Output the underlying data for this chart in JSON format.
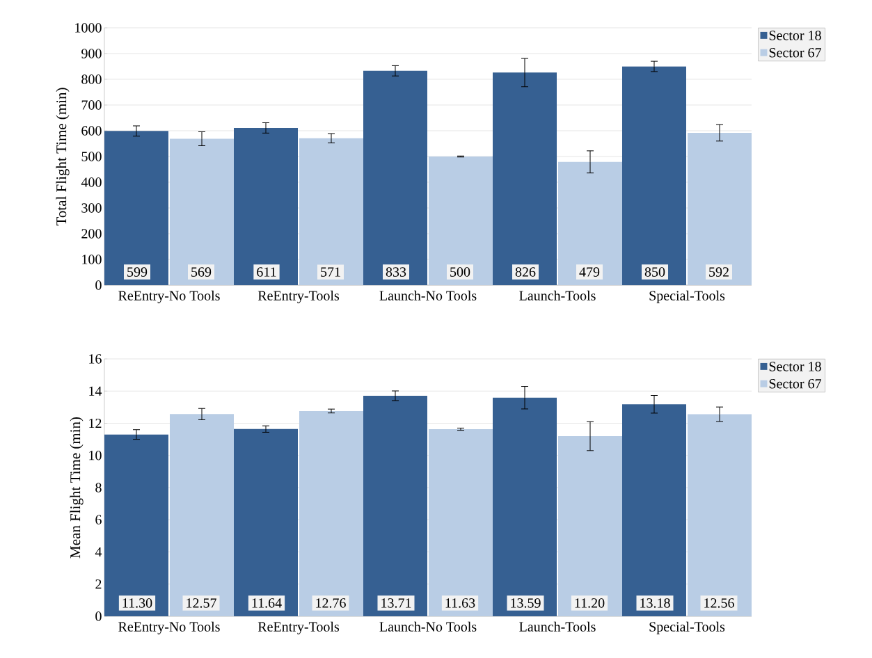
{
  "chart_data": [
    {
      "type": "bar",
      "ylabel": "Total Flight Time (min)",
      "categories": [
        "ReEntry-No Tools",
        "ReEntry-Tools",
        "Launch-No Tools",
        "Launch-Tools",
        "Special-Tools"
      ],
      "ylim": [
        0,
        1000
      ],
      "yticks": [
        0,
        100,
        200,
        300,
        400,
        500,
        600,
        700,
        800,
        900,
        1000
      ],
      "grid": "y",
      "legend": "top right",
      "series": [
        {
          "name": "Sector 18",
          "color": "#366092",
          "values": [
            599,
            611,
            833,
            826,
            850
          ],
          "errors": [
            20,
            20,
            20,
            55,
            20
          ],
          "value_labels": [
            "599",
            "611",
            "833",
            "826",
            "850"
          ]
        },
        {
          "name": "Sector 67",
          "color": "#b9cde5",
          "values": [
            569,
            571,
            500,
            479,
            592
          ],
          "errors": [
            27,
            18,
            2,
            43,
            32
          ],
          "value_labels": [
            "569",
            "571",
            "500",
            "479",
            "592"
          ]
        }
      ]
    },
    {
      "type": "bar",
      "ylabel": "Mean Flight Time (min)",
      "categories": [
        "ReEntry-No Tools",
        "ReEntry-Tools",
        "Launch-No Tools",
        "Launch-Tools",
        "Special-Tools"
      ],
      "ylim": [
        0,
        16
      ],
      "yticks": [
        0,
        2,
        4,
        6,
        8,
        10,
        12,
        14,
        16
      ],
      "grid": "y",
      "legend": "top right",
      "series": [
        {
          "name": "Sector 18",
          "color": "#366092",
          "values": [
            11.3,
            11.64,
            13.71,
            13.59,
            13.18
          ],
          "errors": [
            0.3,
            0.2,
            0.3,
            0.7,
            0.55
          ],
          "value_labels": [
            "11.30",
            "11.64",
            "13.71",
            "13.59",
            "13.18"
          ]
        },
        {
          "name": "Sector 67",
          "color": "#b9cde5",
          "values": [
            12.57,
            12.76,
            11.63,
            11.2,
            12.56
          ],
          "errors": [
            0.35,
            0.12,
            0.07,
            0.9,
            0.45
          ],
          "value_labels": [
            "12.57",
            "12.76",
            "11.63",
            "11.20",
            "12.56"
          ]
        }
      ]
    }
  ]
}
